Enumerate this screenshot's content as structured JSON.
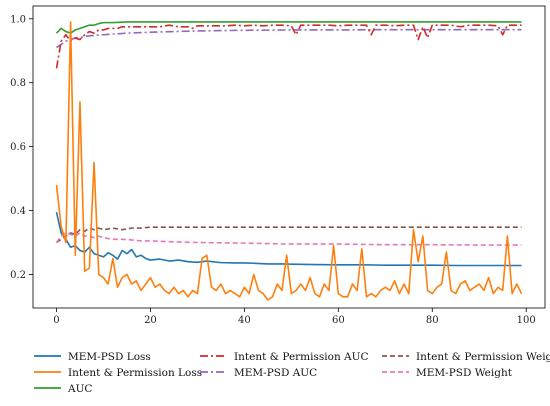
{
  "chart_data": {
    "type": "line",
    "x_ticks": [
      0,
      20,
      40,
      60,
      80,
      100
    ],
    "y_ticks": [
      0.2,
      0.4,
      0.6,
      0.8,
      1.0
    ],
    "x_tick_labels": [
      "0",
      "20",
      "40",
      "60",
      "80",
      "100"
    ],
    "y_tick_labels": [
      "0.2",
      "0.4",
      "0.6",
      "0.8",
      "1.0"
    ],
    "xlim": [
      -5,
      104
    ],
    "ylim": [
      0.095,
      1.04
    ],
    "grid": false,
    "legend_position": "bottom",
    "series": [
      {
        "name": "MEM-PSD Loss",
        "color": "#1f77b4",
        "dash": "solid",
        "x": [
          0,
          1,
          2,
          3,
          4,
          5,
          6,
          7,
          8,
          9,
          10,
          11,
          12,
          13,
          14,
          15,
          16,
          17,
          18,
          19,
          20,
          22,
          24,
          26,
          28,
          30,
          32,
          35,
          38,
          40,
          42,
          45,
          48,
          50,
          55,
          60,
          65,
          70,
          75,
          80,
          85,
          90,
          95,
          99
        ],
        "y": [
          0.395,
          0.33,
          0.31,
          0.285,
          0.29,
          0.275,
          0.27,
          0.285,
          0.265,
          0.26,
          0.255,
          0.268,
          0.26,
          0.248,
          0.275,
          0.265,
          0.278,
          0.255,
          0.26,
          0.25,
          0.245,
          0.248,
          0.242,
          0.245,
          0.24,
          0.238,
          0.242,
          0.237,
          0.236,
          0.236,
          0.235,
          0.233,
          0.233,
          0.232,
          0.231,
          0.23,
          0.23,
          0.229,
          0.229,
          0.229,
          0.228,
          0.228,
          0.228,
          0.228
        ]
      },
      {
        "name": "Intent & Permission Loss",
        "color": "#ff7f0e",
        "dash": "solid",
        "x": [
          0,
          1,
          2,
          3,
          4,
          5,
          6,
          7,
          8,
          9,
          10,
          11,
          12,
          13,
          14,
          15,
          16,
          17,
          18,
          19,
          20,
          21,
          22,
          23,
          24,
          25,
          26,
          27,
          28,
          29,
          30,
          31,
          32,
          33,
          34,
          35,
          36,
          37,
          38,
          39,
          40,
          41,
          42,
          43,
          44,
          45,
          46,
          47,
          48,
          49,
          50,
          51,
          52,
          53,
          54,
          55,
          56,
          57,
          58,
          59,
          60,
          61,
          62,
          63,
          64,
          65,
          66,
          67,
          68,
          69,
          70,
          71,
          72,
          73,
          74,
          75,
          76,
          77,
          78,
          79,
          80,
          81,
          82,
          83,
          84,
          85,
          86,
          87,
          88,
          89,
          90,
          91,
          92,
          93,
          94,
          95,
          96,
          97,
          98,
          99
        ],
        "y": [
          0.48,
          0.35,
          0.3,
          0.99,
          0.26,
          0.74,
          0.21,
          0.22,
          0.55,
          0.2,
          0.19,
          0.17,
          0.25,
          0.16,
          0.19,
          0.2,
          0.17,
          0.18,
          0.15,
          0.17,
          0.19,
          0.16,
          0.17,
          0.15,
          0.14,
          0.16,
          0.14,
          0.15,
          0.13,
          0.15,
          0.14,
          0.25,
          0.26,
          0.16,
          0.15,
          0.17,
          0.14,
          0.15,
          0.14,
          0.13,
          0.16,
          0.14,
          0.2,
          0.15,
          0.14,
          0.12,
          0.13,
          0.17,
          0.15,
          0.26,
          0.14,
          0.15,
          0.17,
          0.15,
          0.19,
          0.14,
          0.13,
          0.17,
          0.15,
          0.29,
          0.14,
          0.13,
          0.13,
          0.17,
          0.15,
          0.28,
          0.13,
          0.14,
          0.13,
          0.15,
          0.16,
          0.15,
          0.18,
          0.14,
          0.17,
          0.14,
          0.34,
          0.24,
          0.32,
          0.15,
          0.14,
          0.16,
          0.17,
          0.27,
          0.15,
          0.14,
          0.17,
          0.18,
          0.15,
          0.16,
          0.17,
          0.15,
          0.19,
          0.14,
          0.16,
          0.15,
          0.32,
          0.14,
          0.17,
          0.14
        ]
      },
      {
        "name": "AUC",
        "color": "#2ca02c",
        "dash": "solid",
        "x": [
          0,
          1,
          2,
          3,
          4,
          5,
          6,
          7,
          8,
          9,
          10,
          12,
          15,
          20,
          25,
          30,
          40,
          50,
          60,
          70,
          80,
          90,
          99
        ],
        "y": [
          0.955,
          0.97,
          0.96,
          0.955,
          0.965,
          0.97,
          0.975,
          0.98,
          0.98,
          0.985,
          0.988,
          0.988,
          0.99,
          0.99,
          0.99,
          0.99,
          0.99,
          0.99,
          0.99,
          0.99,
          0.99,
          0.99,
          0.99
        ]
      },
      {
        "name": "Intent & Permission AUC",
        "color": "#d62728",
        "dash": "8,3,2,3",
        "x": [
          0,
          1,
          2,
          3,
          4,
          5,
          6,
          7,
          8,
          9,
          10,
          11,
          12,
          13,
          14,
          15,
          16,
          18,
          20,
          22,
          24,
          26,
          28,
          29,
          30,
          32,
          34,
          36,
          38,
          40,
          42,
          44,
          46,
          48,
          50,
          51,
          52,
          54,
          56,
          58,
          60,
          62,
          64,
          66,
          67,
          68,
          70,
          72,
          74,
          76,
          77,
          78,
          79,
          80,
          82,
          84,
          86,
          88,
          90,
          92,
          94,
          95,
          96,
          98,
          99
        ],
        "y": [
          0.845,
          0.93,
          0.95,
          0.93,
          0.94,
          0.935,
          0.95,
          0.96,
          0.955,
          0.965,
          0.965,
          0.97,
          0.97,
          0.97,
          0.975,
          0.975,
          0.975,
          0.975,
          0.975,
          0.975,
          0.98,
          0.975,
          0.975,
          0.97,
          0.978,
          0.978,
          0.978,
          0.978,
          0.98,
          0.978,
          0.98,
          0.978,
          0.98,
          0.98,
          0.978,
          0.95,
          0.98,
          0.98,
          0.98,
          0.98,
          0.978,
          0.98,
          0.98,
          0.98,
          0.95,
          0.98,
          0.98,
          0.978,
          0.98,
          0.98,
          0.935,
          0.975,
          0.94,
          0.98,
          0.98,
          0.98,
          0.975,
          0.98,
          0.98,
          0.98,
          0.978,
          0.95,
          0.98,
          0.98,
          0.98
        ]
      },
      {
        "name": "MEM-PSD AUC",
        "color": "#9467bd",
        "dash": "8,3,2,3",
        "x": [
          0,
          1,
          2,
          3,
          4,
          5,
          6,
          8,
          10,
          15,
          20,
          25,
          30,
          40,
          50,
          60,
          70,
          80,
          90,
          99
        ],
        "y": [
          0.91,
          0.92,
          0.93,
          0.935,
          0.94,
          0.94,
          0.945,
          0.948,
          0.95,
          0.955,
          0.958,
          0.96,
          0.962,
          0.964,
          0.965,
          0.965,
          0.966,
          0.966,
          0.966,
          0.966
        ]
      },
      {
        "name": "Intent & Permission Weight",
        "color": "#8c564b",
        "dash": "5,3",
        "x": [
          0,
          1,
          2,
          3,
          4,
          5,
          6,
          7,
          8,
          9,
          10,
          12,
          14,
          16,
          18,
          20,
          25,
          30,
          40,
          50,
          60,
          70,
          80,
          90,
          99
        ],
        "y": [
          0.3,
          0.31,
          0.32,
          0.33,
          0.325,
          0.34,
          0.335,
          0.345,
          0.34,
          0.345,
          0.34,
          0.345,
          0.34,
          0.345,
          0.345,
          0.348,
          0.348,
          0.348,
          0.348,
          0.348,
          0.348,
          0.348,
          0.348,
          0.348,
          0.348
        ]
      },
      {
        "name": "MEM-PSD Weight",
        "color": "#e377c2",
        "dash": "5,3",
        "x": [
          0,
          1,
          2,
          3,
          4,
          5,
          6,
          7,
          8,
          9,
          10,
          12,
          14,
          16,
          18,
          20,
          25,
          30,
          40,
          50,
          60,
          70,
          80,
          90,
          99
        ],
        "y": [
          0.3,
          0.32,
          0.33,
          0.325,
          0.32,
          0.33,
          0.32,
          0.32,
          0.315,
          0.32,
          0.315,
          0.31,
          0.31,
          0.308,
          0.305,
          0.305,
          0.302,
          0.3,
          0.298,
          0.295,
          0.295,
          0.293,
          0.293,
          0.292,
          0.292
        ]
      }
    ]
  }
}
